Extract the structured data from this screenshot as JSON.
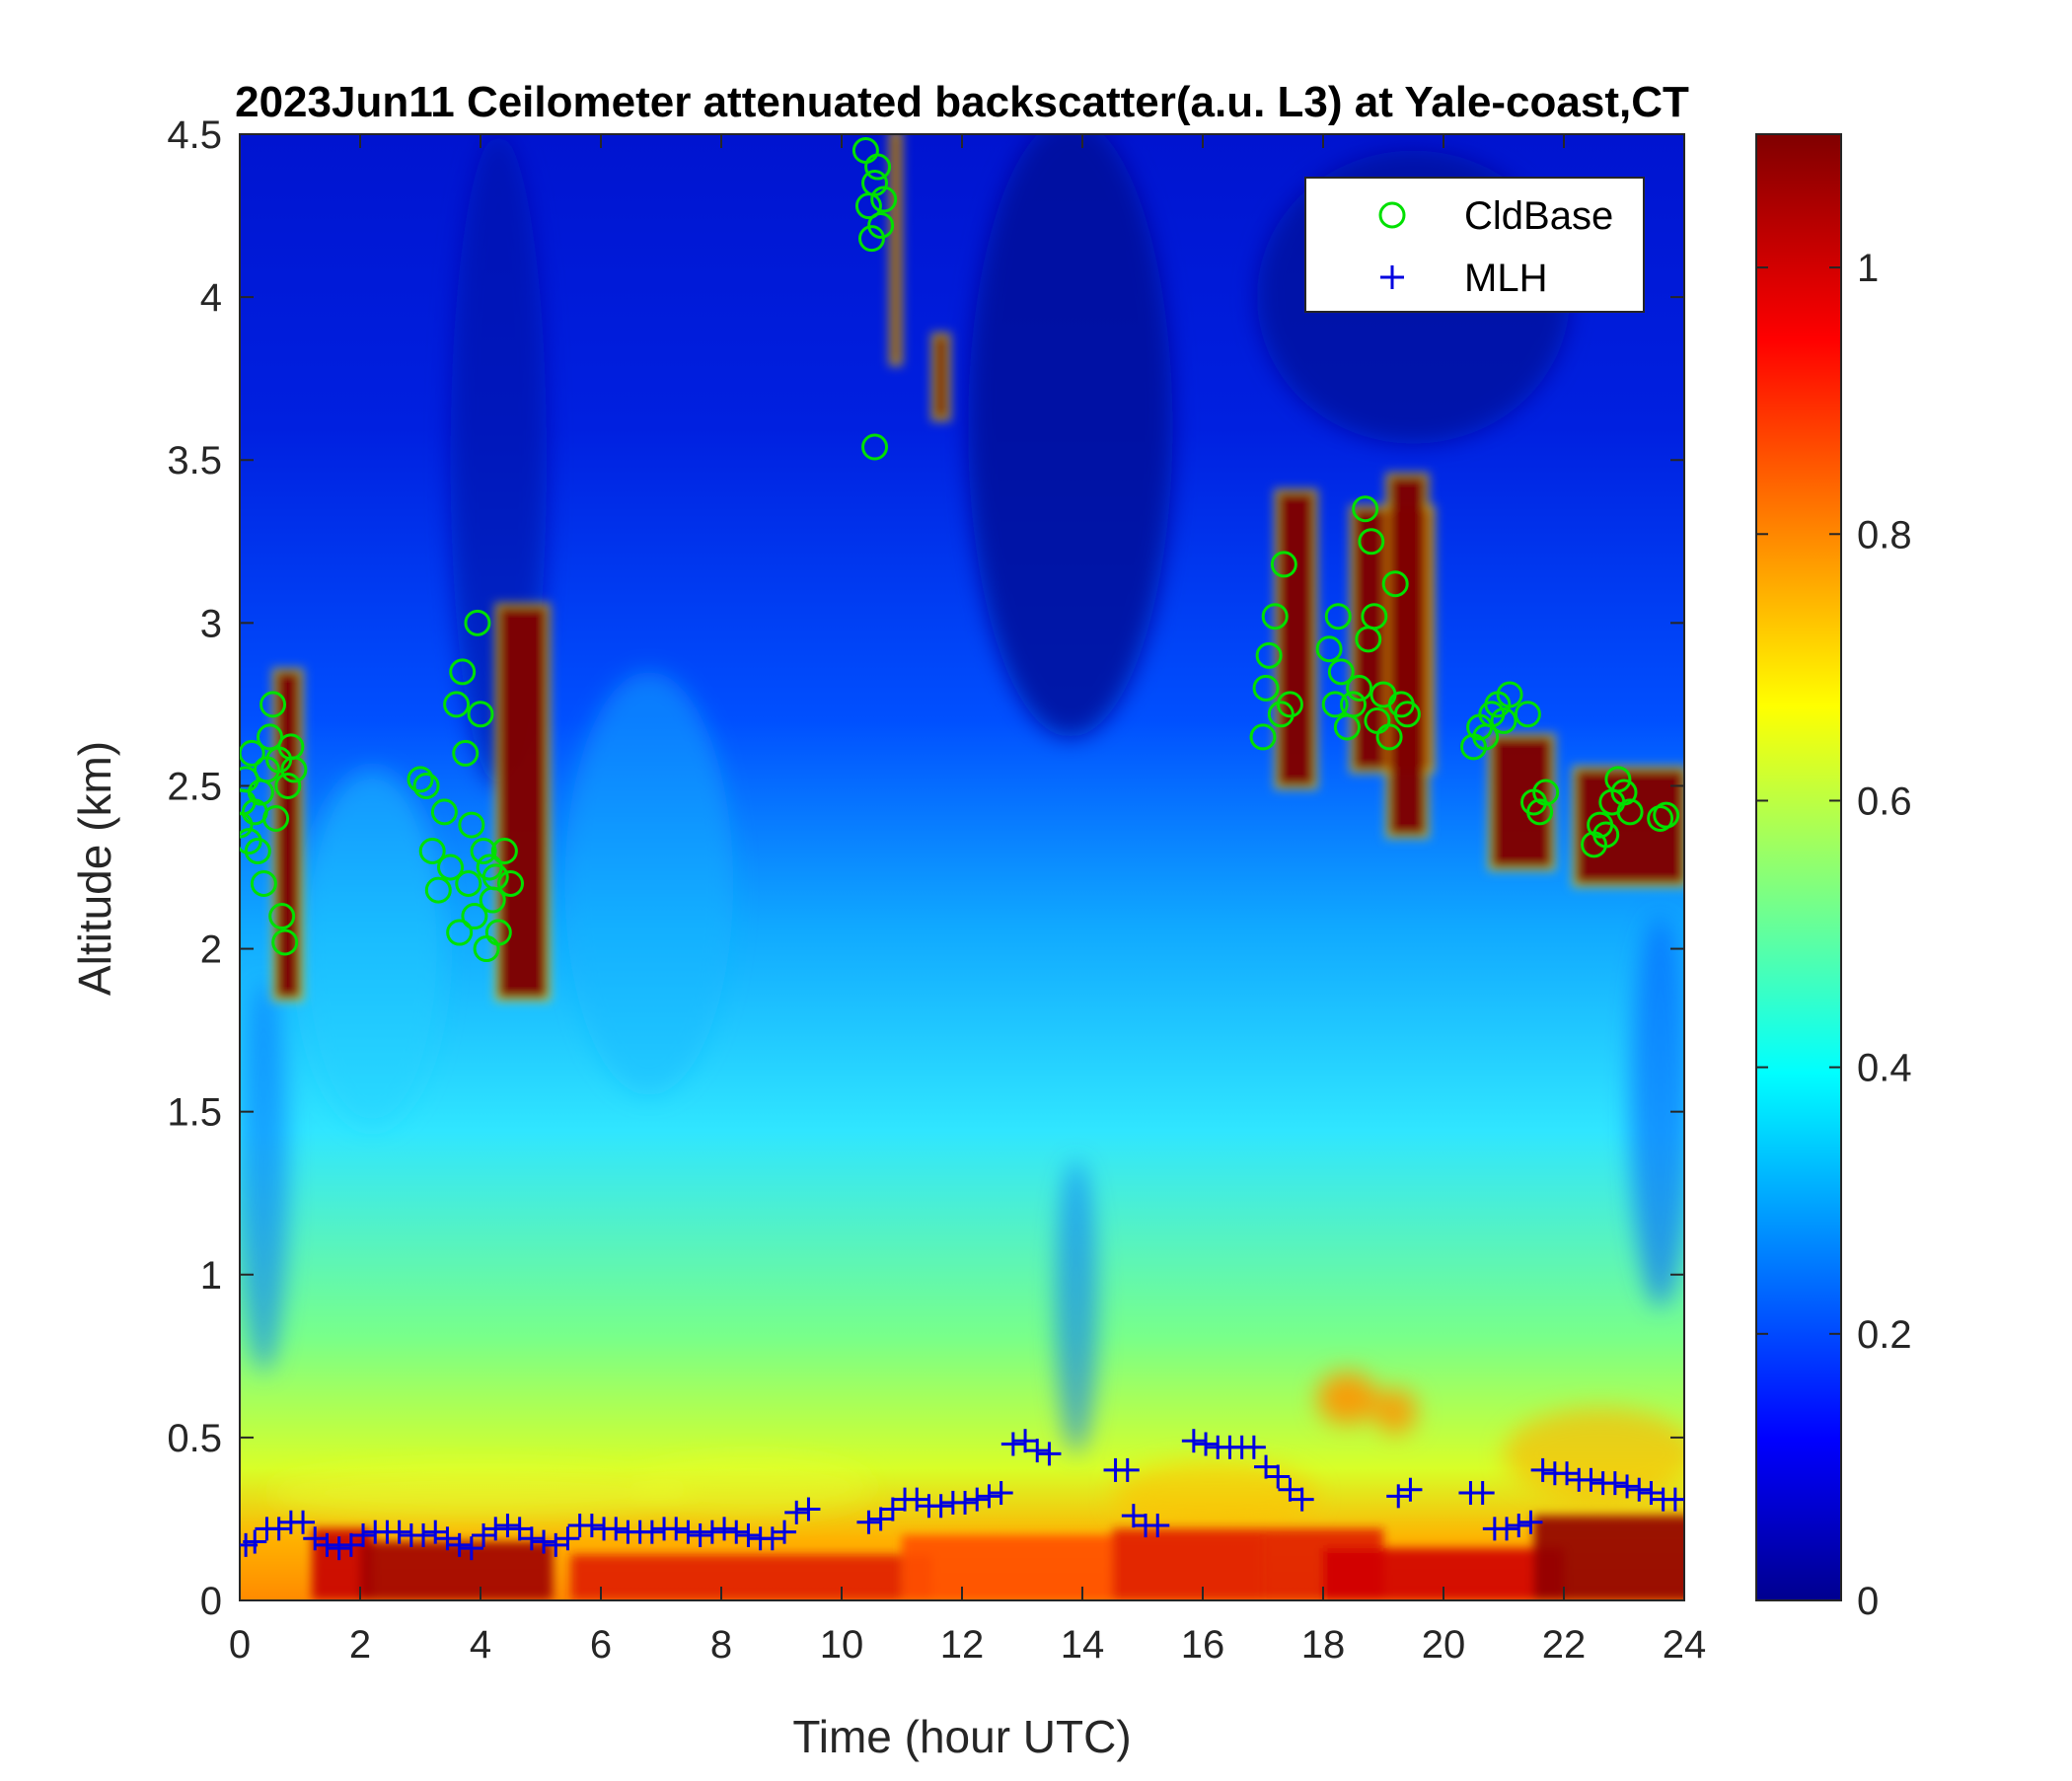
{
  "chart_data": {
    "type": "heatmap",
    "title": "2023Jun11 Ceilometer attenuated backscatter(a.u. L3) at Yale-coast,CT",
    "xlabel": "Time (hour UTC)",
    "ylabel": "Altitude (km)",
    "xlim": [
      0,
      24
    ],
    "ylim": [
      0,
      4.5
    ],
    "xticks": [
      0,
      2,
      4,
      6,
      8,
      10,
      12,
      14,
      16,
      18,
      20,
      22,
      24
    ],
    "xtick_labels": [
      "0",
      "2",
      "4",
      "6",
      "8",
      "10",
      "12",
      "14",
      "16",
      "18",
      "20",
      "22",
      "24"
    ],
    "yticks": [
      0,
      0.5,
      1,
      1.5,
      2,
      2.5,
      3,
      3.5,
      4,
      4.5
    ],
    "ytick_labels": [
      "0",
      "0.5",
      "1",
      "1.5",
      "2",
      "2.5",
      "3",
      "3.5",
      "4",
      "4.5"
    ],
    "colorbar": {
      "colormap": "jet",
      "range": [
        0,
        1.1
      ],
      "ticks": [
        0,
        0.2,
        0.4,
        0.6,
        0.8,
        1
      ],
      "tick_labels": [
        "0",
        "0.2",
        "0.4",
        "0.6",
        "0.8",
        "1"
      ]
    },
    "legend": {
      "placement": "top-right",
      "entries": [
        {
          "label": "CldBase",
          "marker": "circle",
          "color": "#00e000"
        },
        {
          "label": "MLH",
          "marker": "plus",
          "color": "#0000e0"
        }
      ]
    },
    "cloud_base_km": [
      [
        0.0,
        2.38
      ],
      [
        0.05,
        2.45
      ],
      [
        0.1,
        2.52
      ],
      [
        0.15,
        2.33
      ],
      [
        0.2,
        2.6
      ],
      [
        0.25,
        2.42
      ],
      [
        0.3,
        2.3
      ],
      [
        0.35,
        2.48
      ],
      [
        0.4,
        2.2
      ],
      [
        0.45,
        2.55
      ],
      [
        0.5,
        2.65
      ],
      [
        0.55,
        2.75
      ],
      [
        0.6,
        2.4
      ],
      [
        0.65,
        2.58
      ],
      [
        0.7,
        2.1
      ],
      [
        0.75,
        2.02
      ],
      [
        0.8,
        2.5
      ],
      [
        0.85,
        2.62
      ],
      [
        0.9,
        2.55
      ],
      [
        3.0,
        2.52
      ],
      [
        3.1,
        2.5
      ],
      [
        3.2,
        2.3
      ],
      [
        3.3,
        2.18
      ],
      [
        3.4,
        2.42
      ],
      [
        3.5,
        2.25
      ],
      [
        3.6,
        2.75
      ],
      [
        3.65,
        2.05
      ],
      [
        3.7,
        2.85
      ],
      [
        3.75,
        2.6
      ],
      [
        3.8,
        2.2
      ],
      [
        3.85,
        2.38
      ],
      [
        3.9,
        2.1
      ],
      [
        3.95,
        3.0
      ],
      [
        4.0,
        2.72
      ],
      [
        4.05,
        2.3
      ],
      [
        4.1,
        2.0
      ],
      [
        4.15,
        2.25
      ],
      [
        4.2,
        2.15
      ],
      [
        4.25,
        2.22
      ],
      [
        4.3,
        2.05
      ],
      [
        4.4,
        2.3
      ],
      [
        4.5,
        2.2
      ],
      [
        10.4,
        4.45
      ],
      [
        10.45,
        4.28
      ],
      [
        10.5,
        4.18
      ],
      [
        10.55,
        4.35
      ],
      [
        10.6,
        4.4
      ],
      [
        10.65,
        4.22
      ],
      [
        10.7,
        4.3
      ],
      [
        10.55,
        3.54
      ],
      [
        17.0,
        2.65
      ],
      [
        17.05,
        2.8
      ],
      [
        17.1,
        2.9
      ],
      [
        17.2,
        3.02
      ],
      [
        17.3,
        2.72
      ],
      [
        17.35,
        3.18
      ],
      [
        17.45,
        2.75
      ],
      [
        18.1,
        2.92
      ],
      [
        18.2,
        2.75
      ],
      [
        18.25,
        3.02
      ],
      [
        18.3,
        2.85
      ],
      [
        18.4,
        2.68
      ],
      [
        18.5,
        2.75
      ],
      [
        18.6,
        2.8
      ],
      [
        18.7,
        3.35
      ],
      [
        18.75,
        2.95
      ],
      [
        18.8,
        3.25
      ],
      [
        18.85,
        3.02
      ],
      [
        18.9,
        2.7
      ],
      [
        19.0,
        2.78
      ],
      [
        19.1,
        2.65
      ],
      [
        19.2,
        3.12
      ],
      [
        19.3,
        2.75
      ],
      [
        19.4,
        2.72
      ],
      [
        20.5,
        2.62
      ],
      [
        20.6,
        2.68
      ],
      [
        20.7,
        2.65
      ],
      [
        20.8,
        2.72
      ],
      [
        20.9,
        2.75
      ],
      [
        21.0,
        2.7
      ],
      [
        21.1,
        2.78
      ],
      [
        21.4,
        2.72
      ],
      [
        21.5,
        2.45
      ],
      [
        21.6,
        2.42
      ],
      [
        21.7,
        2.48
      ],
      [
        22.5,
        2.32
      ],
      [
        22.6,
        2.38
      ],
      [
        22.7,
        2.35
      ],
      [
        22.8,
        2.45
      ],
      [
        22.9,
        2.52
      ],
      [
        23.0,
        2.48
      ],
      [
        23.1,
        2.42
      ],
      [
        23.6,
        2.4
      ],
      [
        23.7,
        2.41
      ]
    ],
    "mlh_km": [
      [
        0.1,
        0.17
      ],
      [
        0.25,
        0.18
      ],
      [
        0.45,
        0.22
      ],
      [
        0.65,
        0.22
      ],
      [
        0.85,
        0.24
      ],
      [
        1.05,
        0.24
      ],
      [
        1.25,
        0.19
      ],
      [
        1.45,
        0.17
      ],
      [
        1.65,
        0.16
      ],
      [
        1.85,
        0.17
      ],
      [
        2.05,
        0.2
      ],
      [
        2.25,
        0.21
      ],
      [
        2.45,
        0.21
      ],
      [
        2.65,
        0.21
      ],
      [
        2.85,
        0.2
      ],
      [
        3.05,
        0.2
      ],
      [
        3.25,
        0.21
      ],
      [
        3.45,
        0.19
      ],
      [
        3.65,
        0.17
      ],
      [
        3.85,
        0.16
      ],
      [
        4.05,
        0.2
      ],
      [
        4.25,
        0.22
      ],
      [
        4.45,
        0.23
      ],
      [
        4.65,
        0.22
      ],
      [
        4.85,
        0.19
      ],
      [
        5.05,
        0.18
      ],
      [
        5.25,
        0.17
      ],
      [
        5.45,
        0.19
      ],
      [
        5.65,
        0.23
      ],
      [
        5.85,
        0.23
      ],
      [
        6.05,
        0.22
      ],
      [
        6.25,
        0.22
      ],
      [
        6.45,
        0.21
      ],
      [
        6.65,
        0.21
      ],
      [
        6.85,
        0.21
      ],
      [
        7.05,
        0.22
      ],
      [
        7.25,
        0.22
      ],
      [
        7.45,
        0.21
      ],
      [
        7.65,
        0.2
      ],
      [
        7.85,
        0.21
      ],
      [
        8.05,
        0.22
      ],
      [
        8.25,
        0.21
      ],
      [
        8.45,
        0.2
      ],
      [
        8.65,
        0.19
      ],
      [
        8.85,
        0.19
      ],
      [
        9.05,
        0.21
      ],
      [
        9.25,
        0.27
      ],
      [
        9.45,
        0.28
      ],
      [
        10.45,
        0.24
      ],
      [
        10.65,
        0.25
      ],
      [
        10.85,
        0.28
      ],
      [
        11.05,
        0.31
      ],
      [
        11.25,
        0.31
      ],
      [
        11.45,
        0.29
      ],
      [
        11.65,
        0.29
      ],
      [
        11.85,
        0.3
      ],
      [
        12.05,
        0.3
      ],
      [
        12.25,
        0.31
      ],
      [
        12.45,
        0.32
      ],
      [
        12.65,
        0.33
      ],
      [
        12.85,
        0.48
      ],
      [
        13.05,
        0.49
      ],
      [
        13.25,
        0.46
      ],
      [
        13.45,
        0.45
      ],
      [
        14.55,
        0.4
      ],
      [
        14.75,
        0.4
      ],
      [
        14.85,
        0.26
      ],
      [
        15.05,
        0.23
      ],
      [
        15.25,
        0.23
      ],
      [
        15.85,
        0.49
      ],
      [
        16.05,
        0.48
      ],
      [
        16.25,
        0.47
      ],
      [
        16.45,
        0.47
      ],
      [
        16.65,
        0.47
      ],
      [
        16.85,
        0.47
      ],
      [
        17.05,
        0.41
      ],
      [
        17.25,
        0.38
      ],
      [
        17.45,
        0.34
      ],
      [
        17.65,
        0.31
      ],
      [
        19.25,
        0.32
      ],
      [
        19.45,
        0.34
      ],
      [
        20.45,
        0.33
      ],
      [
        20.65,
        0.33
      ],
      [
        20.85,
        0.22
      ],
      [
        21.05,
        0.22
      ],
      [
        21.25,
        0.23
      ],
      [
        21.45,
        0.24
      ],
      [
        21.65,
        0.4
      ],
      [
        21.85,
        0.39
      ],
      [
        22.05,
        0.39
      ],
      [
        22.25,
        0.37
      ],
      [
        22.45,
        0.37
      ],
      [
        22.65,
        0.36
      ],
      [
        22.85,
        0.36
      ],
      [
        23.05,
        0.35
      ],
      [
        23.25,
        0.34
      ],
      [
        23.45,
        0.33
      ],
      [
        23.65,
        0.31
      ],
      [
        23.85,
        0.31
      ]
    ]
  }
}
